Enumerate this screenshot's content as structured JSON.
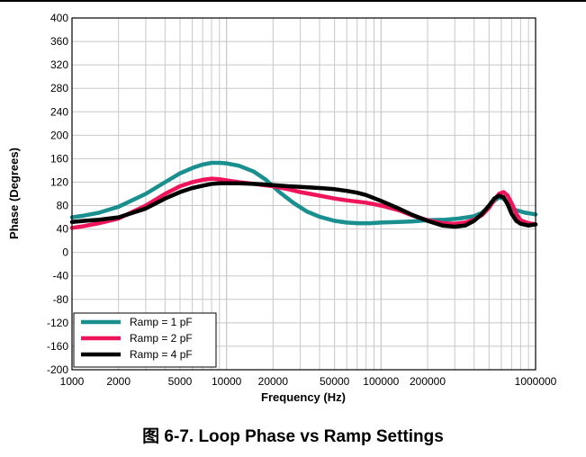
{
  "caption": "图 6-7. Loop Phase vs Ramp Settings",
  "chart_data": {
    "type": "line",
    "xlabel": "Frequency (Hz)",
    "ylabel": "Phase (Degrees)",
    "xscale": "log",
    "xlim": [
      1000,
      1000000
    ],
    "ylim": [
      -200,
      400
    ],
    "xticks": [
      {
        "value": 1000,
        "label": "1000"
      },
      {
        "value": 2000,
        "label": "2000"
      },
      {
        "value": 5000,
        "label": "5000"
      },
      {
        "value": 10000,
        "label": "10000"
      },
      {
        "value": 20000,
        "label": "20000"
      },
      {
        "value": 50000,
        "label": "50000"
      },
      {
        "value": 100000,
        "label": "100000"
      },
      {
        "value": 200000,
        "label": "200000"
      },
      {
        "value": 1000000,
        "label": "1000000"
      }
    ],
    "yticks": [
      400,
      360,
      320,
      280,
      240,
      200,
      160,
      120,
      80,
      40,
      0,
      -40,
      -80,
      -120,
      -160,
      -200
    ],
    "grid": true,
    "legend": "bottom-left",
    "series": [
      {
        "name": "Ramp = 1 pF",
        "color": "#1a8f8f",
        "x": [
          1000,
          1200,
          1500,
          2000,
          3000,
          4000,
          5000,
          6000,
          7000,
          8000,
          9000,
          10000,
          12000,
          15000,
          18000,
          22000,
          27000,
          33000,
          40000,
          50000,
          60000,
          70000,
          85000,
          100000,
          130000,
          160000,
          200000,
          260000,
          320000,
          400000,
          450000,
          500000,
          540000,
          580000,
          620000,
          660000,
          700000,
          750000,
          800000,
          850000,
          900000,
          1000000
        ],
        "y": [
          60,
          63,
          68,
          78,
          100,
          120,
          135,
          144,
          150,
          153,
          153,
          152,
          148,
          138,
          124,
          103,
          85,
          70,
          61,
          54,
          51,
          50,
          50,
          51,
          52,
          53,
          55,
          56,
          58,
          62,
          68,
          78,
          88,
          94,
          92,
          85,
          75,
          72,
          70,
          68,
          67,
          65
        ]
      },
      {
        "name": "Ramp = 2 pF",
        "color": "#f0145a",
        "x": [
          1000,
          1200,
          1500,
          2000,
          3000,
          4000,
          5000,
          6000,
          7000,
          8000,
          9000,
          10000,
          12000,
          15000,
          20000,
          25000,
          30000,
          40000,
          50000,
          60000,
          80000,
          100000,
          130000,
          160000,
          200000,
          250000,
          300000,
          350000,
          400000,
          450000,
          500000,
          540000,
          580000,
          620000,
          660000,
          700000,
          750000,
          800000,
          900000,
          1000000
        ],
        "y": [
          42,
          45,
          50,
          58,
          80,
          100,
          113,
          120,
          124,
          126,
          125,
          123,
          120,
          117,
          113,
          108,
          103,
          97,
          92,
          89,
          85,
          80,
          72,
          63,
          55,
          50,
          49,
          51,
          56,
          64,
          76,
          90,
          100,
          103,
          97,
          84,
          66,
          55,
          50,
          48
        ]
      },
      {
        "name": "Ramp = 4 pF",
        "color": "#000000",
        "x": [
          1000,
          1200,
          1500,
          2000,
          3000,
          4000,
          5000,
          6000,
          7000,
          8000,
          9000,
          10000,
          12000,
          15000,
          20000,
          25000,
          30000,
          40000,
          50000,
          60000,
          70000,
          80000,
          100000,
          130000,
          160000,
          200000,
          250000,
          300000,
          350000,
          400000,
          450000,
          500000,
          540000,
          580000,
          620000,
          660000,
          700000,
          750000,
          800000,
          900000,
          1000000
        ],
        "y": [
          52,
          54,
          56,
          60,
          75,
          92,
          103,
          110,
          114,
          117,
          118,
          118,
          118,
          117,
          115,
          113,
          112,
          110,
          108,
          105,
          102,
          98,
          88,
          75,
          64,
          54,
          46,
          44,
          46,
          54,
          66,
          80,
          92,
          97,
          94,
          82,
          66,
          54,
          49,
          46,
          48
        ]
      }
    ]
  }
}
